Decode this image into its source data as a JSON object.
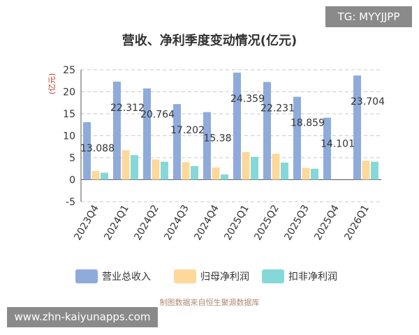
{
  "watermark_top": "TG: MYYJJPP",
  "watermark_bottom": "www.zhn-kaiyunapps.com",
  "source_note": "制图数据来自恒生聚源数据库",
  "chart_data": {
    "type": "bar",
    "title": "营收、净利季度变动情况(亿元)",
    "ylabel": "(亿元)",
    "xlabel": "",
    "ylim": [
      -5,
      25
    ],
    "yticks": [
      -5,
      0,
      5,
      10,
      15,
      20,
      25
    ],
    "grid": true,
    "legend_position": "bottom",
    "categories": [
      "2023Q4",
      "2024Q1",
      "2024Q2",
      "2024Q3",
      "2024Q4",
      "2025Q1",
      "2025Q2",
      "2025Q3",
      "2025Q4",
      "2026Q1"
    ],
    "series": [
      {
        "name": "营业总收入",
        "color": "#8fabdc",
        "values": [
          13.088,
          22.312,
          20.764,
          17.202,
          15.38,
          24.359,
          22.231,
          18.859,
          14.101,
          23.704
        ]
      },
      {
        "name": "归母净利润",
        "color": "#fcd99a",
        "values": [
          2.0,
          6.7,
          4.6,
          4.0,
          2.8,
          6.3,
          5.9,
          2.7,
          null,
          4.3
        ]
      },
      {
        "name": "扣非净利润",
        "color": "#86d8d8",
        "values": [
          1.6,
          5.6,
          4.1,
          3.1,
          1.2,
          5.2,
          3.9,
          2.5,
          null,
          4.1
        ]
      }
    ],
    "data_labels": [
      "13.088",
      "22.312",
      "20.764",
      "17.202",
      "15.38",
      "24.359",
      "22.231",
      "18.859",
      "14.101",
      "23.704"
    ]
  }
}
